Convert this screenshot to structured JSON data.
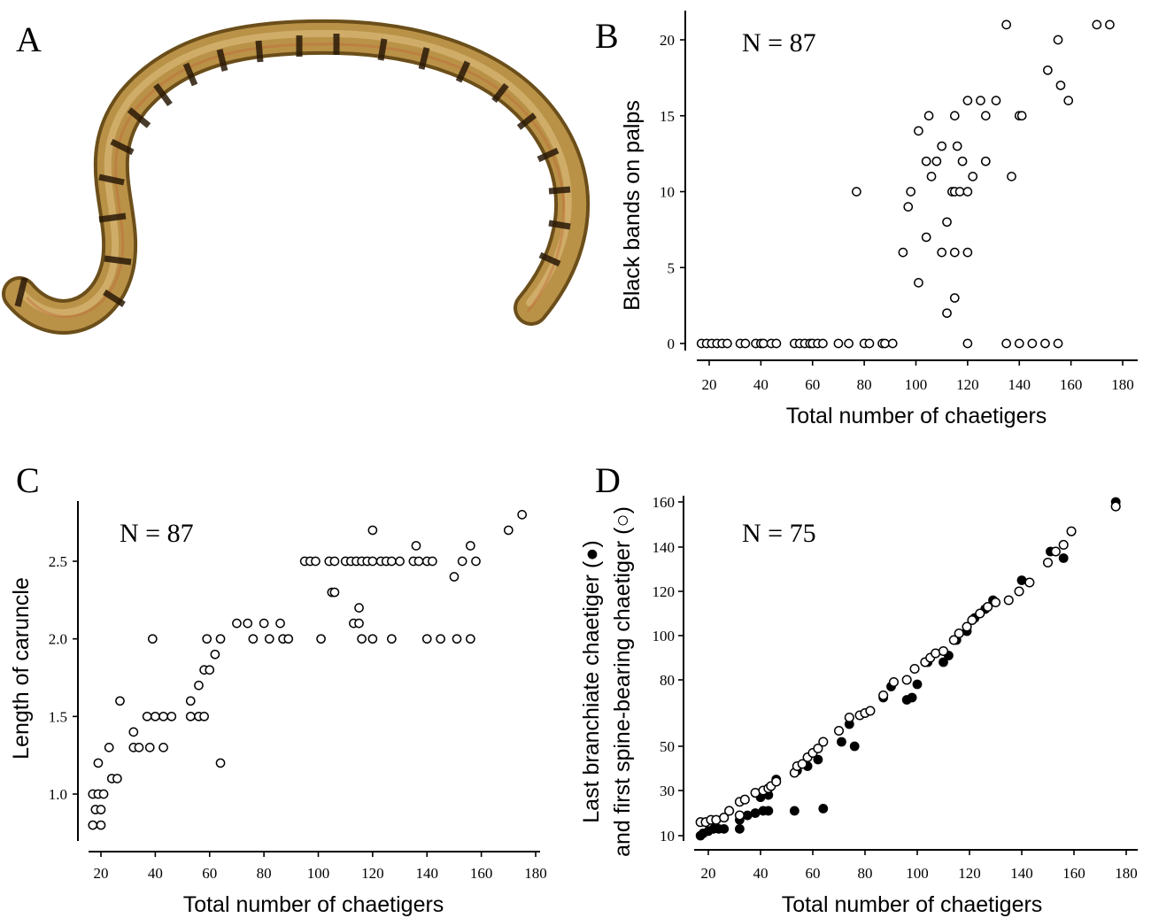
{
  "figure": {
    "panel_a": {
      "letter": "A"
    },
    "panels": [
      {
        "letter": "B",
        "n_label": "N = 87",
        "xlabel": "Total number of chaetigers",
        "ylabel": "Black bands on palps",
        "xticks": [
          "20",
          "40",
          "60",
          "80",
          "100",
          "120",
          "140",
          "160",
          "180"
        ],
        "yticks": [
          "0",
          "5",
          "10",
          "15",
          "20"
        ]
      },
      {
        "letter": "C",
        "n_label": "N = 87",
        "xlabel": "Total number of chaetigers",
        "ylabel": "Length of caruncle",
        "xticks": [
          "20",
          "40",
          "60",
          "80",
          "100",
          "120",
          "140",
          "160",
          "180"
        ],
        "yticks": [
          "1.0",
          "1.5",
          "2.0",
          "2.5"
        ]
      },
      {
        "letter": "D",
        "n_label": "N = 75",
        "xlabel": "Total number of chaetigers",
        "ylabel_line1": "Last branchiate chaetiger (●)",
        "ylabel_line2": "and first spine-bearing chaetiger (○)",
        "xticks": [
          "20",
          "40",
          "60",
          "80",
          "100",
          "120",
          "140",
          "160",
          "180"
        ],
        "yticks": [
          "10",
          "30",
          "50",
          "80",
          "100",
          "120",
          "140",
          "160"
        ]
      }
    ]
  },
  "chart_data": [
    {
      "panel": "B",
      "type": "scatter",
      "xlabel": "Total number of chaetigers",
      "ylabel": "Black bands on palps",
      "xlim": [
        15,
        180
      ],
      "ylim": [
        0,
        21
      ],
      "marker": "open circle",
      "points": [
        [
          17,
          0
        ],
        [
          19,
          0
        ],
        [
          21,
          0
        ],
        [
          23,
          0
        ],
        [
          25,
          0
        ],
        [
          27,
          0
        ],
        [
          32,
          0
        ],
        [
          34,
          0
        ],
        [
          38,
          0
        ],
        [
          40,
          0
        ],
        [
          41,
          0
        ],
        [
          44,
          0
        ],
        [
          46,
          0
        ],
        [
          53,
          0
        ],
        [
          55,
          0
        ],
        [
          57,
          0
        ],
        [
          59,
          0
        ],
        [
          60,
          0
        ],
        [
          62,
          0
        ],
        [
          64,
          0
        ],
        [
          70,
          0
        ],
        [
          74,
          0
        ],
        [
          80,
          0
        ],
        [
          82,
          0
        ],
        [
          87,
          0
        ],
        [
          88,
          0
        ],
        [
          91,
          0
        ],
        [
          120,
          0
        ],
        [
          135,
          0
        ],
        [
          140,
          0
        ],
        [
          145,
          0
        ],
        [
          150,
          0
        ],
        [
          155,
          0
        ],
        [
          112,
          2
        ],
        [
          115,
          3
        ],
        [
          101,
          4
        ],
        [
          95,
          6
        ],
        [
          110,
          6
        ],
        [
          115,
          6
        ],
        [
          120,
          6
        ],
        [
          104,
          7
        ],
        [
          112,
          8
        ],
        [
          97,
          9
        ],
        [
          77,
          10
        ],
        [
          98,
          10
        ],
        [
          114,
          10
        ],
        [
          115,
          10
        ],
        [
          117,
          10
        ],
        [
          120,
          10
        ],
        [
          106,
          11
        ],
        [
          122,
          11
        ],
        [
          137,
          11
        ],
        [
          104,
          12
        ],
        [
          108,
          12
        ],
        [
          118,
          12
        ],
        [
          127,
          12
        ],
        [
          110,
          13
        ],
        [
          116,
          13
        ],
        [
          101,
          14
        ],
        [
          105,
          15
        ],
        [
          115,
          15
        ],
        [
          127,
          15
        ],
        [
          140,
          15
        ],
        [
          141,
          15
        ],
        [
          120,
          16
        ],
        [
          125,
          16
        ],
        [
          131,
          16
        ],
        [
          159,
          16
        ],
        [
          156,
          17
        ],
        [
          151,
          18
        ],
        [
          155,
          20
        ],
        [
          135,
          21
        ],
        [
          170,
          21
        ],
        [
          175,
          21
        ]
      ]
    },
    {
      "panel": "C",
      "type": "scatter",
      "xlabel": "Total number of chaetigers",
      "ylabel": "Length of caruncle",
      "xlim": [
        15,
        180
      ],
      "ylim": [
        0.8,
        2.8
      ],
      "marker": "open circle",
      "points": [
        [
          17,
          0.8
        ],
        [
          20,
          0.8
        ],
        [
          18,
          0.9
        ],
        [
          20,
          0.9
        ],
        [
          17,
          1.0
        ],
        [
          19,
          1.0
        ],
        [
          21,
          1.0
        ],
        [
          19,
          1.2
        ],
        [
          24,
          1.1
        ],
        [
          26,
          1.1
        ],
        [
          23,
          1.3
        ],
        [
          27,
          1.6
        ],
        [
          32,
          1.3
        ],
        [
          34,
          1.3
        ],
        [
          38,
          1.3
        ],
        [
          43,
          1.3
        ],
        [
          32,
          1.4
        ],
        [
          37,
          1.5
        ],
        [
          40,
          1.5
        ],
        [
          43,
          1.5
        ],
        [
          46,
          1.5
        ],
        [
          53,
          1.5
        ],
        [
          56,
          1.5
        ],
        [
          58,
          1.5
        ],
        [
          53,
          1.6
        ],
        [
          56,
          1.7
        ],
        [
          58,
          1.8
        ],
        [
          60,
          1.8
        ],
        [
          62,
          1.9
        ],
        [
          64,
          1.2
        ],
        [
          39,
          2.0
        ],
        [
          59,
          2.0
        ],
        [
          64,
          2.0
        ],
        [
          70,
          2.1
        ],
        [
          74,
          2.1
        ],
        [
          80,
          2.1
        ],
        [
          86,
          2.1
        ],
        [
          76,
          2.0
        ],
        [
          82,
          2.0
        ],
        [
          87,
          2.0
        ],
        [
          89,
          2.0
        ],
        [
          101,
          2.0
        ],
        [
          116,
          2.0
        ],
        [
          120,
          2.0
        ],
        [
          127,
          2.0
        ],
        [
          140,
          2.0
        ],
        [
          145,
          2.0
        ],
        [
          151,
          2.0
        ],
        [
          156,
          2.0
        ],
        [
          113,
          2.1
        ],
        [
          115,
          2.1
        ],
        [
          115,
          2.2
        ],
        [
          105,
          2.3
        ],
        [
          106,
          2.3
        ],
        [
          95,
          2.5
        ],
        [
          97,
          2.5
        ],
        [
          99,
          2.5
        ],
        [
          104,
          2.5
        ],
        [
          106,
          2.5
        ],
        [
          110,
          2.5
        ],
        [
          112,
          2.5
        ],
        [
          114,
          2.5
        ],
        [
          116,
          2.5
        ],
        [
          118,
          2.5
        ],
        [
          120,
          2.5
        ],
        [
          123,
          2.5
        ],
        [
          125,
          2.5
        ],
        [
          127,
          2.5
        ],
        [
          130,
          2.5
        ],
        [
          135,
          2.5
        ],
        [
          137,
          2.5
        ],
        [
          140,
          2.5
        ],
        [
          142,
          2.5
        ],
        [
          153,
          2.5
        ],
        [
          158,
          2.5
        ],
        [
          150,
          2.4
        ],
        [
          136,
          2.6
        ],
        [
          156,
          2.6
        ],
        [
          120,
          2.7
        ],
        [
          170,
          2.7
        ],
        [
          175,
          2.8
        ]
      ]
    },
    {
      "panel": "D",
      "type": "scatter",
      "xlabel": "Total number of chaetigers",
      "ylabel": "Last branchiate chaetiger (●) and first spine-bearing chaetiger (○)",
      "xlim": [
        15,
        180
      ],
      "ylim": [
        10,
        160
      ],
      "series": [
        {
          "name": "Last branchiate chaetiger (●)",
          "marker": "filled circle",
          "points": [
            [
              17,
              10
            ],
            [
              18,
              11
            ],
            [
              20,
              12
            ],
            [
              22,
              13
            ],
            [
              24,
              13
            ],
            [
              26,
              13
            ],
            [
              32,
              13
            ],
            [
              32,
              17
            ],
            [
              35,
              19
            ],
            [
              38,
              20
            ],
            [
              41,
              21
            ],
            [
              43,
              21
            ],
            [
              53,
              21
            ],
            [
              64,
              22
            ],
            [
              40,
              27
            ],
            [
              43,
              28
            ],
            [
              46,
              35
            ],
            [
              54,
              39
            ],
            [
              58,
              41
            ],
            [
              62,
              44
            ],
            [
              71,
              52
            ],
            [
              76,
              50
            ],
            [
              74,
              60
            ],
            [
              87,
              72
            ],
            [
              90,
              77
            ],
            [
              96,
              71
            ],
            [
              98,
              72
            ],
            [
              100,
              78
            ],
            [
              104,
              88
            ],
            [
              110,
              88
            ],
            [
              112,
              91
            ],
            [
              115,
              98
            ],
            [
              119,
              102
            ],
            [
              122,
              108
            ],
            [
              126,
              112
            ],
            [
              129,
              116
            ],
            [
              140,
              125
            ],
            [
              151,
              138
            ],
            [
              156,
              135
            ],
            [
              176,
              160
            ]
          ]
        },
        {
          "name": "first spine-bearing chaetiger (○)",
          "marker": "open circle",
          "points": [
            [
              17,
              16
            ],
            [
              19,
              16
            ],
            [
              21,
              17
            ],
            [
              23,
              17
            ],
            [
              26,
              18
            ],
            [
              28,
              21
            ],
            [
              32,
              19
            ],
            [
              32,
              25
            ],
            [
              34,
              26
            ],
            [
              38,
              29
            ],
            [
              41,
              30
            ],
            [
              43,
              31
            ],
            [
              44,
              32
            ],
            [
              46,
              34
            ],
            [
              53,
              38
            ],
            [
              54,
              41
            ],
            [
              56,
              42
            ],
            [
              58,
              45
            ],
            [
              60,
              47
            ],
            [
              62,
              49
            ],
            [
              64,
              52
            ],
            [
              70,
              57
            ],
            [
              74,
              63
            ],
            [
              78,
              64
            ],
            [
              80,
              65
            ],
            [
              82,
              66
            ],
            [
              87,
              73
            ],
            [
              91,
              79
            ],
            [
              96,
              80
            ],
            [
              99,
              85
            ],
            [
              103,
              88
            ],
            [
              105,
              90
            ],
            [
              107,
              92
            ],
            [
              110,
              93
            ],
            [
              114,
              98
            ],
            [
              116,
              101
            ],
            [
              119,
              104
            ],
            [
              121,
              107
            ],
            [
              124,
              110
            ],
            [
              127,
              113
            ],
            [
              130,
              115
            ],
            [
              135,
              116
            ],
            [
              139,
              120
            ],
            [
              143,
              124
            ],
            [
              150,
              133
            ],
            [
              153,
              138
            ],
            [
              156,
              141
            ],
            [
              159,
              147
            ],
            [
              176,
              158
            ]
          ]
        }
      ]
    }
  ]
}
